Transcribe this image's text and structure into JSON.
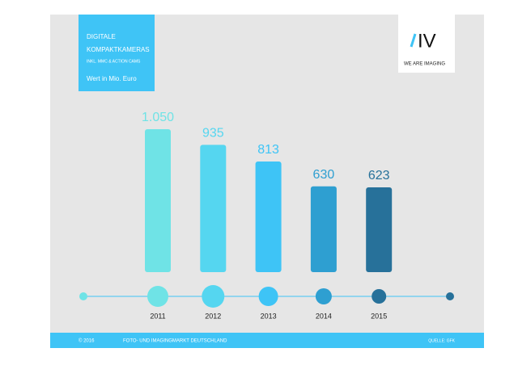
{
  "chart_data": {
    "type": "bar",
    "title": "DIGITALE",
    "subtitle": "KOMPAKTKAMERAS",
    "note": "INKL. MMC & ACTION CAMS",
    "unit_label": "Wert in Mio. Euro",
    "logo_text": "IV",
    "logo_tagline": "WE ARE IMAGING",
    "categories": [
      "2011",
      "2012",
      "2013",
      "2014",
      "2015"
    ],
    "values": [
      1050,
      935,
      813,
      630,
      623
    ],
    "value_labels": [
      "1.050",
      "935",
      "813",
      "630",
      "623"
    ],
    "colors": [
      "#6fe3e6",
      "#55d6f0",
      "#3ec4f6",
      "#2e9fd1",
      "#27719a"
    ],
    "footer_left": "© 2016",
    "footer_center": "FOTO- UND IMAGINGMARKT DEUTSCHLAND",
    "footer_right": "QUELLE: GFK"
  }
}
